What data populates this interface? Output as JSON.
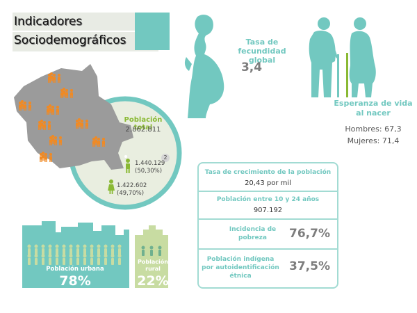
{
  "title": {
    "line1": "Indicadores",
    "line2": "Sociodemográficos"
  },
  "fertility": {
    "label": "Tasa de fecundidad global",
    "value": "3,4"
  },
  "life_expectancy": {
    "label": "Esperanza de vida al nacer",
    "men": "Hombres: 67,3",
    "women": "Mujeres: 71,4"
  },
  "population": {
    "label": "Población total",
    "value": "2.862.811",
    "marker": "2",
    "men": "1.440.129",
    "men_pct": "(50,30%)",
    "women": "1.422.602",
    "women_pct": "(49,70%)"
  },
  "urban": {
    "label": "Población urbana",
    "value": "78%"
  },
  "rural": {
    "label": "Población rural",
    "value": "22%"
  },
  "stats": {
    "growth_label": "Tasa de crecimiento de la población",
    "growth_value": "20,43 por mil",
    "youth_label": "Población entre 10 y 24 años",
    "youth_value": "907.192",
    "poverty_label": "Incidencia de pobreza",
    "poverty_value": "76,7%",
    "indigenous_label": "Población indígena por autoidentificación étnica",
    "indigenous_value": "37,5%"
  },
  "colors": {
    "accent": "#72c8c0",
    "green": "#8ab934",
    "map": "#9b9b9b",
    "people": "#f08a24"
  }
}
